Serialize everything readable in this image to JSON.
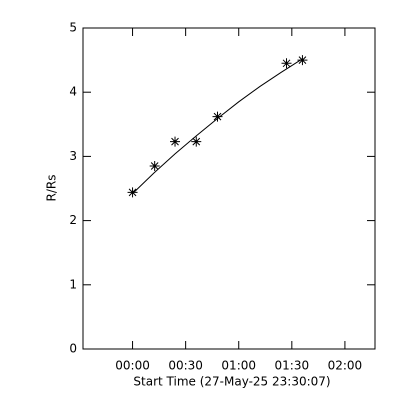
{
  "chart_data": {
    "type": "scatter",
    "xlabel": "Start Time (27-May-25 23:30:07)",
    "ylabel": "R/Rs",
    "x": [
      0,
      12.5,
      24,
      36,
      48,
      87,
      96
    ],
    "y": [
      2.44,
      2.85,
      3.23,
      3.23,
      3.62,
      4.45,
      4.5
    ],
    "fit": {
      "x": [
        0,
        12,
        24,
        36,
        48,
        60,
        72,
        84,
        96
      ],
      "y": [
        2.42,
        2.74,
        3.04,
        3.32,
        3.59,
        3.85,
        4.09,
        4.31,
        4.52
      ]
    },
    "color": "#000000",
    "xlim": [
      -28,
      137
    ],
    "ylim": [
      0,
      5
    ],
    "xticks": [
      {
        "value": 0,
        "label": "00:00"
      },
      {
        "value": 30,
        "label": "00:30"
      },
      {
        "value": 60,
        "label": "01:00"
      },
      {
        "value": 90,
        "label": "01:30"
      },
      {
        "value": 120,
        "label": "02:00"
      }
    ],
    "yticks": [
      0,
      1,
      2,
      3,
      4,
      5
    ]
  }
}
